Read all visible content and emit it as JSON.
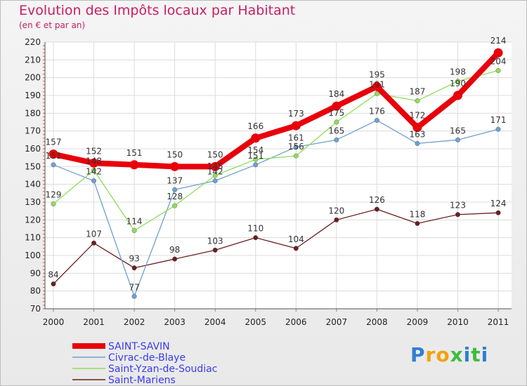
{
  "chart_data": {
    "type": "line",
    "title": "Evolution des Impôts locaux par Habitant",
    "subtitle": "(en € et par an)",
    "xlabel": "",
    "ylabel": "",
    "ylim": [
      70,
      220
    ],
    "yticks": [
      70,
      80,
      90,
      100,
      110,
      120,
      130,
      140,
      150,
      160,
      170,
      180,
      190,
      200,
      210,
      220
    ],
    "categories": [
      "2000",
      "2001",
      "2002",
      "2003",
      "2004",
      "2005",
      "2006",
      "2007",
      "2008",
      "2009",
      "2010",
      "2011"
    ],
    "grid": true,
    "legend_position": "bottom-left",
    "series": [
      {
        "name": "SAINT-SAVIN",
        "color": "#e8000b",
        "values": [
          157,
          152,
          151,
          150,
          150,
          166,
          173,
          184,
          195,
          172,
          190,
          214
        ]
      },
      {
        "name": "Civrac-de-Blaye",
        "color": "#6fa0d0",
        "values": [
          151,
          142,
          77,
          137,
          142,
          151,
          161,
          165,
          176,
          163,
          165,
          171
        ]
      },
      {
        "name": "Saint-Yzan-de-Soudiac",
        "color": "#8fdc5a",
        "values": [
          129,
          148,
          114,
          128,
          145,
          154,
          156,
          175,
          191,
          187,
          198,
          204
        ]
      },
      {
        "name": "Saint-Mariens",
        "color": "#6b1e1e",
        "values": [
          84,
          107,
          93,
          98,
          103,
          110,
          104,
          120,
          126,
          118,
          123,
          124
        ]
      }
    ]
  },
  "logo": {
    "text": "Proxiti",
    "letters": [
      "P",
      "r",
      "o",
      "x",
      "i",
      "t",
      "i"
    ],
    "colors": [
      "#2f7fd3",
      "#f2a20c",
      "#f2a20c",
      "#3cbd3c",
      "#2f7fd3",
      "#3cbd3c",
      "#2f7fd3"
    ]
  }
}
